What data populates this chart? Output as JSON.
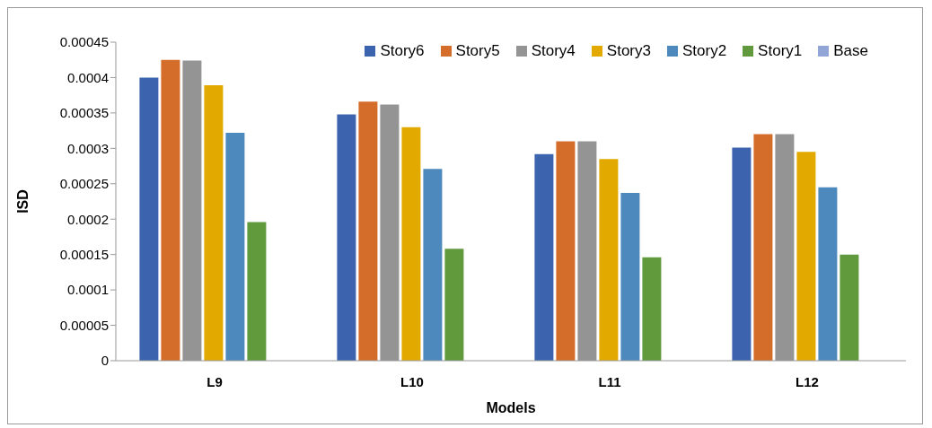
{
  "chart_data": {
    "type": "bar",
    "xlabel": "Models",
    "ylabel": "ISD",
    "categories": [
      "L9",
      "L10",
      "L11",
      "L12"
    ],
    "series": [
      {
        "name": "Story6",
        "color": "#3c64ae",
        "values": [
          0.0004,
          0.000348,
          0.000292,
          0.000301
        ]
      },
      {
        "name": "Story5",
        "color": "#d56d2a",
        "values": [
          0.000425,
          0.000366,
          0.00031,
          0.00032
        ]
      },
      {
        "name": "Story4",
        "color": "#949494",
        "values": [
          0.000424,
          0.000362,
          0.00031,
          0.00032
        ]
      },
      {
        "name": "Story3",
        "color": "#e2aa00",
        "values": [
          0.000389,
          0.00033,
          0.000285,
          0.000295
        ]
      },
      {
        "name": "Story2",
        "color": "#4e89be",
        "values": [
          0.000322,
          0.000271,
          0.000237,
          0.000245
        ]
      },
      {
        "name": "Story1",
        "color": "#609a3c",
        "values": [
          0.000196,
          0.000158,
          0.000146,
          0.00015
        ]
      },
      {
        "name": "Base",
        "color": "#91a6d6",
        "values": [
          0,
          0,
          0,
          0
        ]
      }
    ],
    "ylim": [
      0,
      0.00045
    ],
    "yticks": [
      0,
      {
        "value": 5e-05,
        "label": "0.00005"
      },
      0.0001,
      0.00015,
      0.0002,
      0.00025,
      0.0003,
      0.00035,
      0.0004,
      0.00045
    ],
    "grid": false,
    "legend": "top right"
  }
}
